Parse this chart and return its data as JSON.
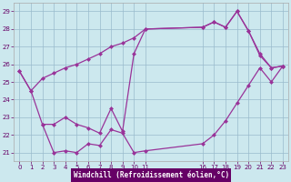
{
  "xlabel": "Windchill (Refroidissement éolien,°C)",
  "bg_color": "#cce8ee",
  "line_color": "#993399",
  "grid_color": "#99bbcc",
  "xlim": [
    -0.5,
    23.5
  ],
  "ylim": [
    20.5,
    29.5
  ],
  "xticks": [
    0,
    1,
    2,
    3,
    4,
    5,
    6,
    7,
    8,
    9,
    10,
    11,
    16,
    17,
    18,
    19,
    20,
    21,
    22,
    23
  ],
  "yticks": [
    21,
    22,
    23,
    24,
    25,
    26,
    27,
    28,
    29
  ],
  "curve1_x": [
    0,
    1,
    2,
    3,
    4,
    5,
    6,
    7,
    8,
    9,
    10,
    11,
    16,
    17,
    18,
    19,
    20,
    21,
    22,
    23
  ],
  "curve1_y": [
    25.6,
    24.5,
    25.2,
    25.5,
    25.8,
    26.0,
    26.3,
    26.6,
    27.0,
    27.2,
    27.5,
    28.0,
    28.1,
    28.4,
    28.1,
    29.0,
    27.9,
    26.6,
    25.8,
    25.9
  ],
  "curve2_x": [
    0,
    1,
    2,
    3,
    4,
    5,
    6,
    7,
    8,
    9,
    10,
    11,
    16,
    17,
    18,
    19,
    20,
    21,
    22,
    23
  ],
  "curve2_y": [
    25.6,
    24.5,
    22.6,
    22.6,
    23.0,
    22.6,
    22.4,
    22.1,
    23.5,
    22.2,
    26.6,
    28.0,
    28.1,
    28.4,
    28.1,
    29.0,
    27.9,
    26.5,
    25.8,
    25.9
  ],
  "curve3_x": [
    2,
    3,
    4,
    5,
    6,
    7,
    8,
    9,
    10,
    11,
    16,
    17,
    18,
    19,
    20,
    21,
    22,
    23
  ],
  "curve3_y": [
    22.6,
    21.0,
    21.1,
    21.0,
    21.5,
    21.4,
    22.3,
    22.1,
    21.0,
    21.1,
    21.5,
    22.0,
    22.8,
    23.8,
    24.8,
    25.8,
    25.0,
    25.9
  ],
  "tick_label_color": "#660066"
}
